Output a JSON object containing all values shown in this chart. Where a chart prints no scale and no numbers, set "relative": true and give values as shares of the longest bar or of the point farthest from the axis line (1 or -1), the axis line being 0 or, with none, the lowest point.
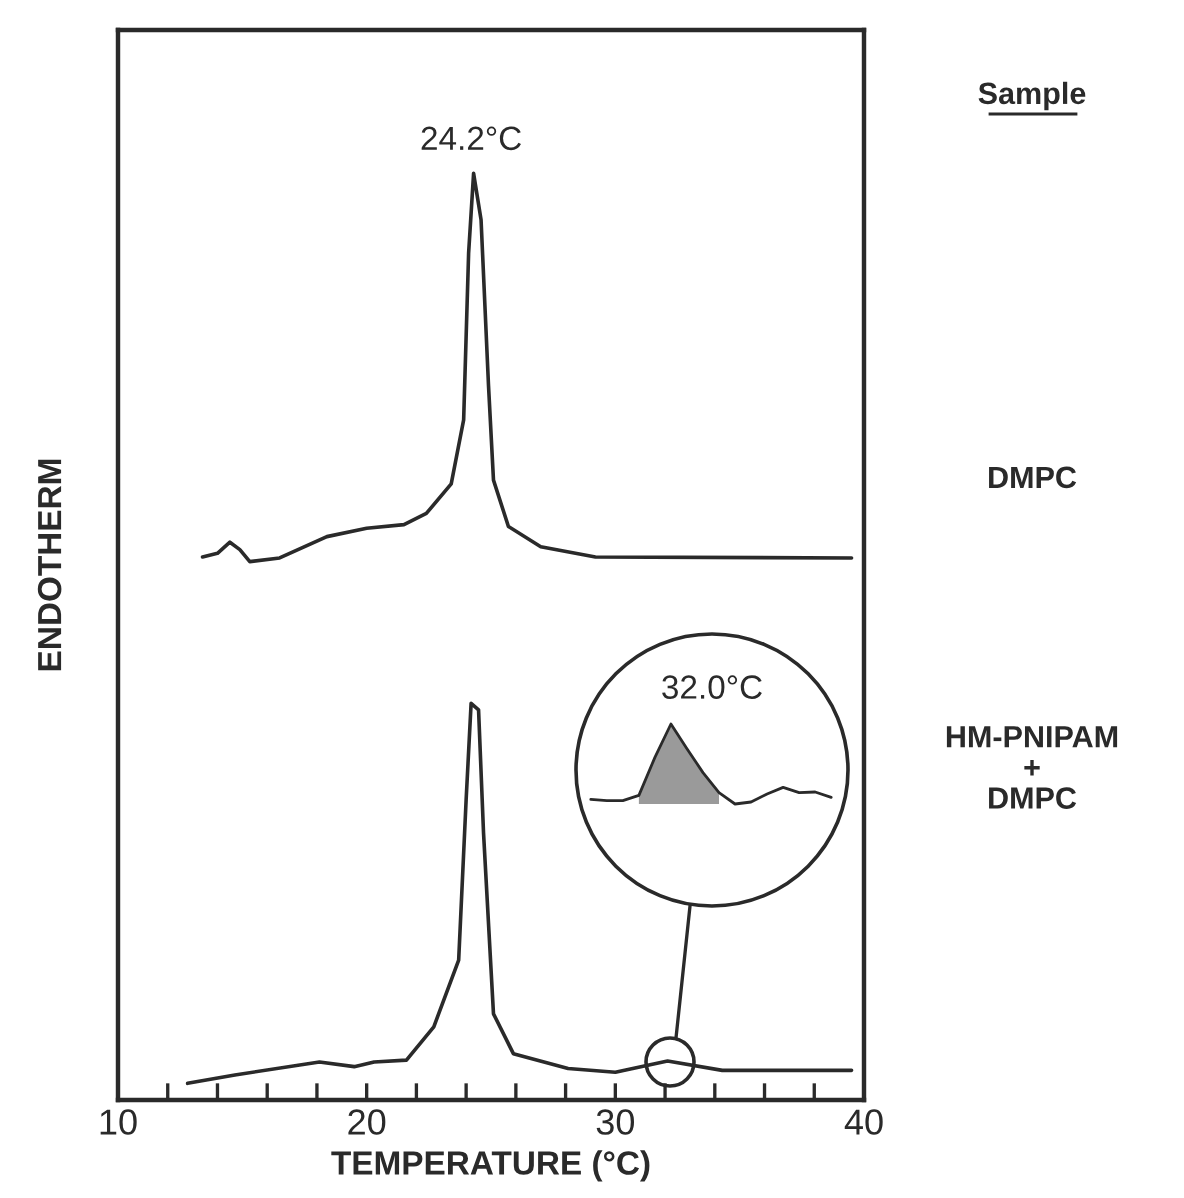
{
  "chart_data": [
    {
      "type": "line",
      "relative": true,
      "xlabel": "TEMPERATURE (°C)",
      "ylabel": "ENDOTHERM",
      "legend_title": "Sample",
      "legend": false,
      "grid": false,
      "xlim": [
        10,
        40
      ],
      "xticks": [
        10,
        {
          "value": 12,
          "label": null
        },
        {
          "value": 14,
          "label": null
        },
        {
          "value": 16,
          "label": null
        },
        {
          "value": 18,
          "label": null
        },
        20,
        {
          "value": 22,
          "label": null
        },
        {
          "value": 24,
          "label": null
        },
        {
          "value": 26,
          "label": null
        },
        {
          "value": 28,
          "label": null
        },
        30,
        {
          "value": 32,
          "label": null
        },
        {
          "value": 34,
          "label": null
        },
        {
          "value": 36,
          "label": null
        },
        {
          "value": 38,
          "label": null
        },
        40
      ],
      "annotations": [
        {
          "text": "24.2°C",
          "x": 24.2,
          "y": 1.0
        }
      ],
      "series": [
        {
          "name": "DMPC",
          "color": "#2a2a2a",
          "x": [
            13.4,
            14.0,
            14.5,
            14.9,
            15.3,
            16.5,
            18.4,
            20.0,
            21.5,
            22.4,
            23.4,
            23.9,
            24.1,
            24.3,
            24.6,
            24.9,
            25.1,
            25.7,
            27.0,
            29.2,
            39.5
          ],
          "values": [
            0.586,
            0.59,
            0.602,
            0.594,
            0.581,
            0.585,
            0.608,
            0.617,
            0.621,
            0.633,
            0.665,
            0.734,
            0.914,
            1.0,
            0.95,
            0.771,
            0.669,
            0.619,
            0.597,
            0.586,
            0.585
          ]
        },
        {
          "name": "HM-PNIPAM\n+\nDMPC",
          "color": "#2a2a2a",
          "x": [
            12.8,
            14.7,
            18.1,
            19.5,
            20.3,
            21.6,
            22.7,
            23.7,
            24.0,
            24.2,
            24.5,
            24.7,
            25.1,
            25.9,
            28.1,
            30.0,
            32.1,
            34.3,
            39.5
          ],
          "values": [
            0.018,
            0.027,
            0.041,
            0.036,
            0.041,
            0.043,
            0.079,
            0.151,
            0.324,
            0.428,
            0.421,
            0.288,
            0.093,
            0.05,
            0.034,
            0.03,
            0.042,
            0.032,
            0.032
          ]
        }
      ]
    },
    {
      "type": "line",
      "relative": true,
      "tick_labels": false,
      "annotations": [
        "32.0°C"
      ],
      "categories": [
        null,
        null,
        null,
        null,
        null,
        null,
        null,
        null,
        null,
        null,
        null,
        null,
        null,
        null,
        null,
        null
      ],
      "series": [
        {
          "type": "area",
          "color": "#9a9a9a",
          "values": [
            null,
            null,
            null,
            0.108,
            0.583,
            1.0,
            0.692,
            0.392,
            0.142,
            null,
            null,
            null,
            null,
            null,
            null,
            null
          ]
        },
        {
          "type": "line",
          "color": "#2a2a2a",
          "values": [
            0.058,
            0.042,
            0.042,
            0.108,
            0.583,
            1.0,
            0.692,
            0.392,
            0.142,
            0.0,
            0.025,
            0.125,
            0.208,
            0.142,
            0.15,
            0.083
          ]
        }
      ]
    }
  ]
}
